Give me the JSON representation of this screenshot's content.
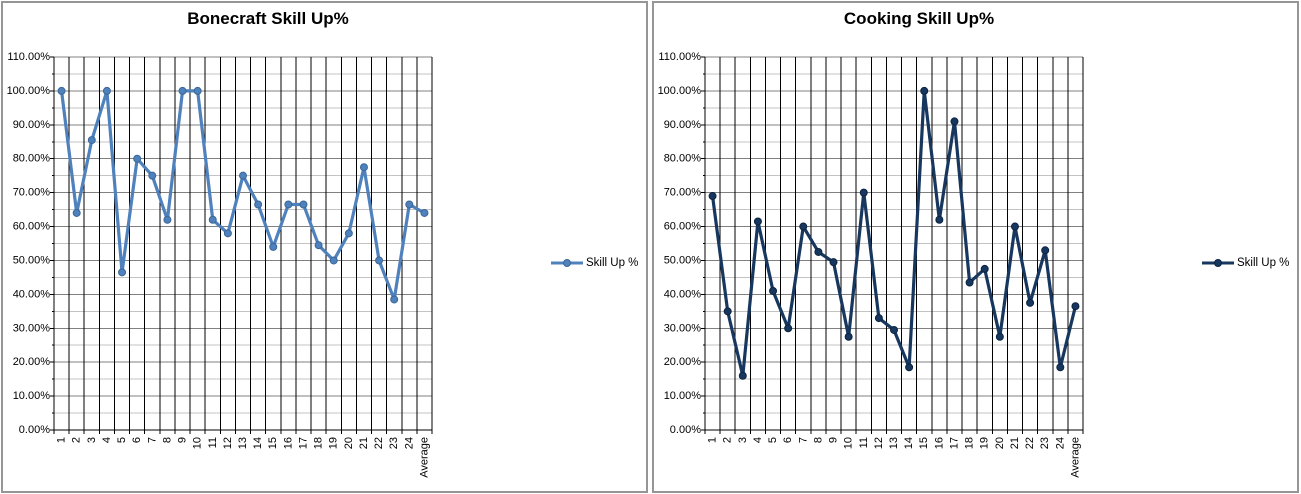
{
  "styles": {
    "grid_major_color": "#808080",
    "grid_minor_color": "#C3C3C3",
    "grid_vertical_color": "#000000",
    "axis_color": "#000000",
    "panel_border_color": "#969696",
    "background_color": "#FFFFFF",
    "text_color": "#000000"
  },
  "chart_data": [
    {
      "type": "line",
      "title": "Bonecraft Skill Up%",
      "legend_label": "Skill Up %",
      "legend_position": "right",
      "categories": [
        "1",
        "2",
        "3",
        "4",
        "5",
        "6",
        "7",
        "8",
        "9",
        "10",
        "11",
        "12",
        "13",
        "14",
        "15",
        "16",
        "17",
        "18",
        "19",
        "20",
        "21",
        "22",
        "23",
        "24",
        "Average"
      ],
      "series": [
        {
          "name": "Skill Up %",
          "values": [
            100,
            64,
            85.5,
            100,
            46.5,
            80,
            75,
            62,
            100,
            100,
            62,
            58,
            75,
            66.5,
            54,
            66.5,
            66.5,
            54.5,
            50,
            58,
            77.5,
            50,
            38.5,
            66.5,
            64
          ]
        }
      ],
      "ylabel": "",
      "xlabel": "",
      "ylim": [
        0,
        110
      ],
      "y_major_step": 10,
      "y_minor_step": 5,
      "y_tick_labels": [
        "0.00%",
        "10.00%",
        "20.00%",
        "30.00%",
        "40.00%",
        "50.00%",
        "60.00%",
        "70.00%",
        "80.00%",
        "90.00%",
        "100.00%",
        "110.00%"
      ],
      "grid": {
        "horizontal_major": true,
        "horizontal_minor": true,
        "vertical_category": true
      },
      "colors": {
        "line": "#4F81BD",
        "marker": "#4F81BD",
        "marker_border": "#3A6796"
      }
    },
    {
      "type": "line",
      "title": "Cooking Skill Up%",
      "legend_label": "Skill Up %",
      "legend_position": "right",
      "categories": [
        "1",
        "2",
        "3",
        "4",
        "5",
        "6",
        "7",
        "8",
        "9",
        "10",
        "11",
        "12",
        "13",
        "14",
        "15",
        "16",
        "17",
        "18",
        "19",
        "20",
        "21",
        "22",
        "23",
        "24",
        "Average"
      ],
      "series": [
        {
          "name": "Skill Up %",
          "values": [
            69,
            35,
            16,
            61.5,
            41,
            30,
            60,
            52.5,
            49.5,
            27.5,
            70,
            33,
            29.5,
            18.5,
            100,
            62,
            91,
            43.5,
            47.5,
            27.5,
            60,
            37.5,
            53,
            18.5,
            36.5
          ]
        }
      ],
      "ylabel": "",
      "xlabel": "",
      "ylim": [
        0,
        110
      ],
      "y_major_step": 10,
      "y_minor_step": 5,
      "y_tick_labels": [
        "0.00%",
        "10.00%",
        "20.00%",
        "30.00%",
        "40.00%",
        "50.00%",
        "60.00%",
        "70.00%",
        "80.00%",
        "90.00%",
        "100.00%",
        "110.00%"
      ],
      "grid": {
        "horizontal_major": true,
        "horizontal_minor": true,
        "vertical_category": true
      },
      "colors": {
        "line": "#17375E",
        "marker": "#17375E",
        "marker_border": "#0C2340"
      }
    }
  ]
}
